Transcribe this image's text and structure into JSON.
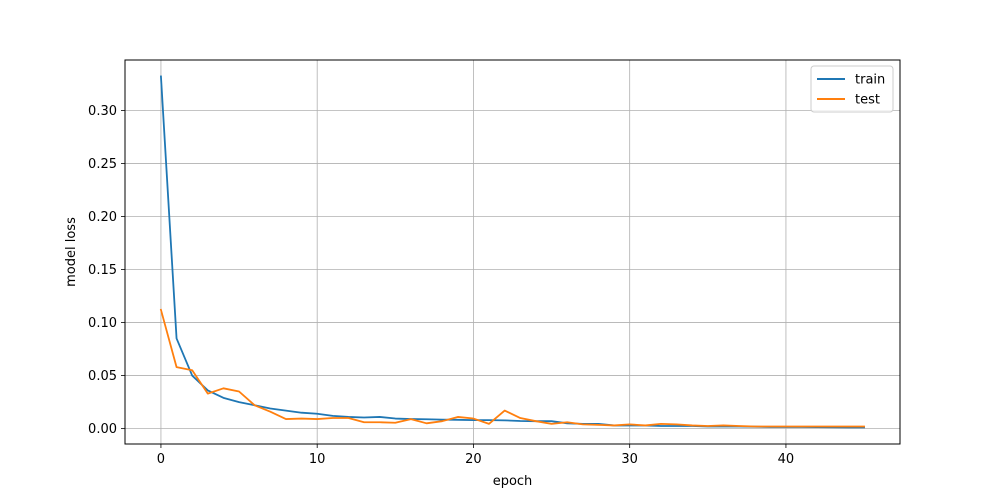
{
  "chart_data": {
    "type": "line",
    "xlabel": "epoch",
    "ylabel": "model loss",
    "xlim": [
      -2.3,
      47.3
    ],
    "ylim": [
      -0.0145,
      0.3475
    ],
    "xticks": [
      0,
      10,
      20,
      30,
      40
    ],
    "yticks": [
      0.0,
      0.05,
      0.1,
      0.15,
      0.2,
      0.25,
      0.3
    ],
    "xtick_labels": [
      "0",
      "10",
      "20",
      "30",
      "40"
    ],
    "ytick_labels": [
      "0.00",
      "0.05",
      "0.10",
      "0.15",
      "0.20",
      "0.25",
      "0.30"
    ],
    "grid": true,
    "legend_position": "top-right",
    "x": [
      0,
      1,
      2,
      3,
      4,
      5,
      6,
      7,
      8,
      9,
      10,
      11,
      12,
      13,
      14,
      15,
      16,
      17,
      18,
      19,
      20,
      21,
      22,
      23,
      24,
      25,
      26,
      27,
      28,
      29,
      30,
      31,
      32,
      33,
      34,
      35,
      36,
      37,
      38,
      39,
      40,
      41,
      42,
      43,
      44,
      45
    ],
    "series": [
      {
        "name": "train",
        "color": "#1f77b4",
        "values": [
          0.332,
          0.085,
          0.05,
          0.036,
          0.029,
          0.025,
          0.022,
          0.019,
          0.017,
          0.015,
          0.014,
          0.012,
          0.011,
          0.0105,
          0.011,
          0.0095,
          0.009,
          0.0088,
          0.0085,
          0.0083,
          0.008,
          0.008,
          0.0078,
          0.0072,
          0.007,
          0.007,
          0.005,
          0.0045,
          0.0045,
          0.003,
          0.003,
          0.003,
          0.0025,
          0.0025,
          0.0025,
          0.002,
          0.002,
          0.002,
          0.0018,
          0.0015,
          0.0015,
          0.0015,
          0.0014,
          0.0013,
          0.0012,
          0.0012
        ]
      },
      {
        "name": "test",
        "color": "#ff7f0e",
        "values": [
          0.112,
          0.058,
          0.055,
          0.033,
          0.038,
          0.035,
          0.022,
          0.016,
          0.009,
          0.0095,
          0.009,
          0.01,
          0.01,
          0.006,
          0.006,
          0.0055,
          0.009,
          0.005,
          0.007,
          0.011,
          0.0095,
          0.0045,
          0.017,
          0.01,
          0.007,
          0.0045,
          0.006,
          0.004,
          0.0035,
          0.003,
          0.004,
          0.003,
          0.0045,
          0.004,
          0.003,
          0.0025,
          0.003,
          0.0025,
          0.002,
          0.002,
          0.002,
          0.002,
          0.002,
          0.002,
          0.002,
          0.002
        ]
      }
    ]
  }
}
